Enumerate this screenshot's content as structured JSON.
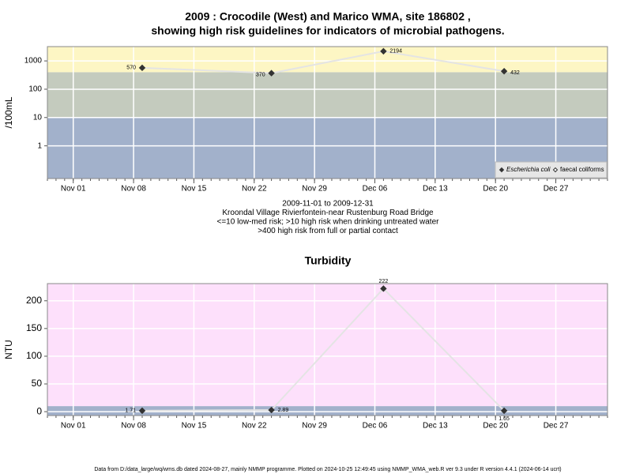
{
  "chart_data": [
    {
      "type": "line",
      "title": [
        "2009 : Crocodile (West) and Marico WMA, site 186802 ,",
        "showing high risk guidelines for indicators of microbial pathogens."
      ],
      "y_label": "/100mL",
      "log_y": true,
      "x": [
        "2009-11-09",
        "2009-11-24",
        "2009-12-07",
        "2009-12-21"
      ],
      "series": [
        {
          "name": "Escherichia coli",
          "color": "#333333",
          "values": [
            570,
            370,
            2194,
            432
          ]
        },
        {
          "name": "faecal coliforms",
          "color": "#333333",
          "values": [
            null,
            null,
            null,
            null
          ]
        }
      ],
      "line_color": "#e4e4e4",
      "thresholds": [
        10,
        400
      ],
      "band_colors": [
        "#a2b1cb",
        "#c4cbbe",
        "#fdf6c4"
      ],
      "xlim": [
        "2009-10-29",
        "2010-01-02"
      ],
      "xticks": [
        {
          "value": "2009-11-01",
          "label": "Nov 01"
        },
        {
          "value": "2009-11-08",
          "label": "Nov 08"
        },
        {
          "value": "2009-11-15",
          "label": "Nov 15"
        },
        {
          "value": "2009-11-22",
          "label": "Nov 22"
        },
        {
          "value": "2009-11-29",
          "label": "Nov 29"
        },
        {
          "value": "2009-12-06",
          "label": "Dec 06"
        },
        {
          "value": "2009-12-13",
          "label": "Dec 13"
        },
        {
          "value": "2009-12-20",
          "label": "Dec 20"
        },
        {
          "value": "2009-12-27",
          "label": "Dec 27"
        }
      ],
      "ylim": [
        0.07,
        3200
      ],
      "yticks": [
        1,
        10,
        100,
        1000
      ],
      "grid": true,
      "legend": "bottom-right",
      "notes": [
        "2009-11-01 to 2009-12-31",
        "Kroondal Village Rivierfontein-near Rustenburg Road Bridge",
        "<=10 low-med risk; >10 high risk when drinking untreated water",
        ">400 high risk from full or partial contact"
      ]
    },
    {
      "type": "line",
      "title": [
        "Turbidity"
      ],
      "y_label": "NTU",
      "x": [
        "2009-11-09",
        "2009-11-24",
        "2009-12-07",
        "2009-12-21"
      ],
      "series": [
        {
          "color": "#333333",
          "values": [
            1.71,
            2.89,
            222,
            1.65
          ]
        }
      ],
      "line_color": "#e4e4e4",
      "thresholds": [
        10
      ],
      "band_colors": [
        "#a2b1cb",
        "#fde0fb"
      ],
      "xlim": [
        "2009-10-29",
        "2010-01-02"
      ],
      "xticks": [
        {
          "value": "2009-11-01",
          "label": "Nov 01"
        },
        {
          "value": "2009-11-08",
          "label": "Nov 08"
        },
        {
          "value": "2009-11-15",
          "label": "Nov 15"
        },
        {
          "value": "2009-11-22",
          "label": "Nov 22"
        },
        {
          "value": "2009-11-29",
          "label": "Nov 29"
        },
        {
          "value": "2009-12-06",
          "label": "Dec 06"
        },
        {
          "value": "2009-12-13",
          "label": "Dec 13"
        },
        {
          "value": "2009-12-20",
          "label": "Dec 20"
        },
        {
          "value": "2009-12-27",
          "label": "Dec 27"
        }
      ],
      "ylim": [
        -7,
        231
      ],
      "yticks": [
        0,
        50,
        100,
        150,
        200
      ],
      "grid": true
    }
  ],
  "footer": "Data from D:/data_large/wq/wms.db dated 2024-08-27, mainly NMMP programme. Plotted on 2024-10-25 12:49:45 using NMMP_WMA_web.R ver 9.3 under R version 4.4.1 (2024-06-14 ucrt)"
}
